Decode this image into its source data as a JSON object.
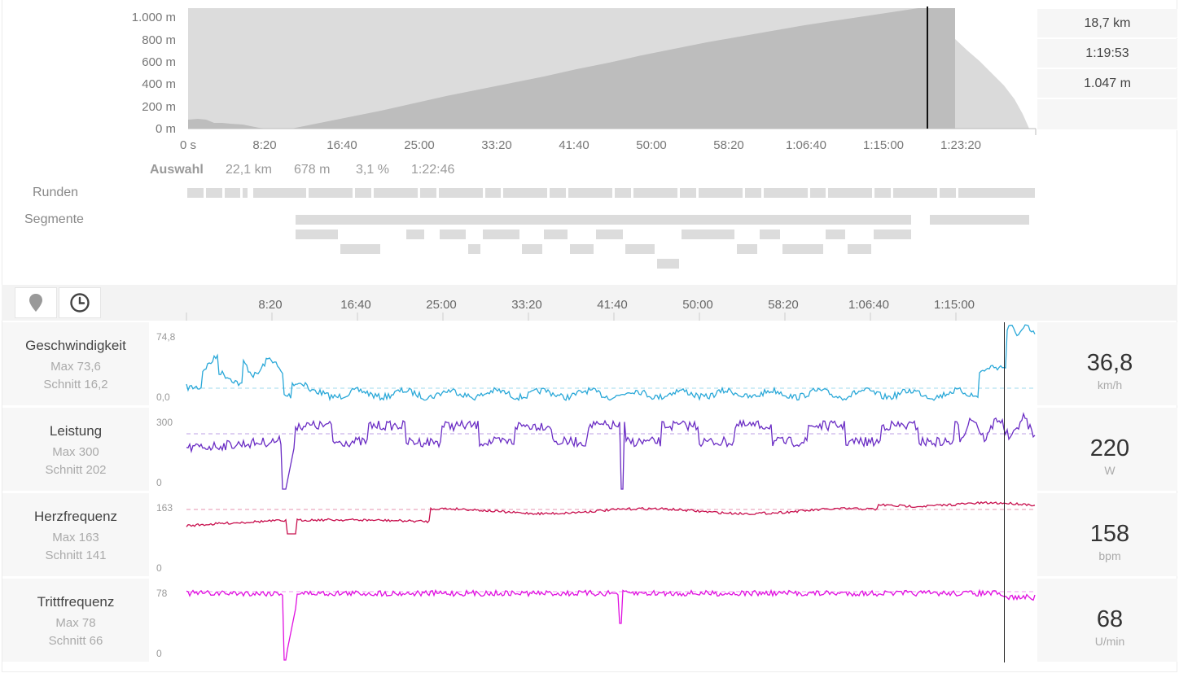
{
  "elevation": {
    "y_ticks": [
      "1.000 m",
      "800 m",
      "600 m",
      "400 m",
      "200 m",
      "0 m"
    ],
    "x_ticks": [
      "0 s",
      "8:20",
      "16:40",
      "25:00",
      "33:20",
      "41:40",
      "50:00",
      "58:20",
      "1:06:40",
      "1:15:00",
      "1:23:20"
    ]
  },
  "stats": {
    "distance": "18,7 km",
    "time": "1:19:53",
    "altitude": "1.047 m"
  },
  "selection": {
    "label": "Auswahl",
    "distance": "22,1 km",
    "elevation_gain": "678 m",
    "grade": "3,1 %",
    "duration": "1:22:46"
  },
  "labels": {
    "laps": "Runden",
    "segments": "Segmente"
  },
  "toolbar": {
    "map_icon": "map-pin-icon",
    "time_icon": "clock-icon"
  },
  "timeline_ticks": [
    "8:20",
    "16:40",
    "25:00",
    "33:20",
    "41:40",
    "50:00",
    "58:20",
    "1:06:40",
    "1:15:00"
  ],
  "metrics": [
    {
      "name": "Geschwindigkeit",
      "max": "Max 73,6",
      "avg": "Schnitt 16,2",
      "value": "36,8",
      "unit": "km/h",
      "scale_top": "74,8",
      "scale_bottom": "0,0",
      "color": "#2aa8d8"
    },
    {
      "name": "Leistung",
      "max": "Max 300",
      "avg": "Schnitt 202",
      "value": "220",
      "unit": "W",
      "scale_top": "300",
      "scale_bottom": "0",
      "color": "#6a2cc4"
    },
    {
      "name": "Herzfrequenz",
      "max": "Max 163",
      "avg": "Schnitt 141",
      "value": "158",
      "unit": "bpm",
      "scale_top": "163",
      "scale_bottom": "0",
      "color": "#c8104e"
    },
    {
      "name": "Trittfrequenz",
      "max": "Max 78",
      "avg": "Schnitt 66",
      "value": "68",
      "unit": "U/min",
      "scale_top": "78",
      "scale_bottom": "0",
      "color": "#e010e0"
    }
  ]
}
